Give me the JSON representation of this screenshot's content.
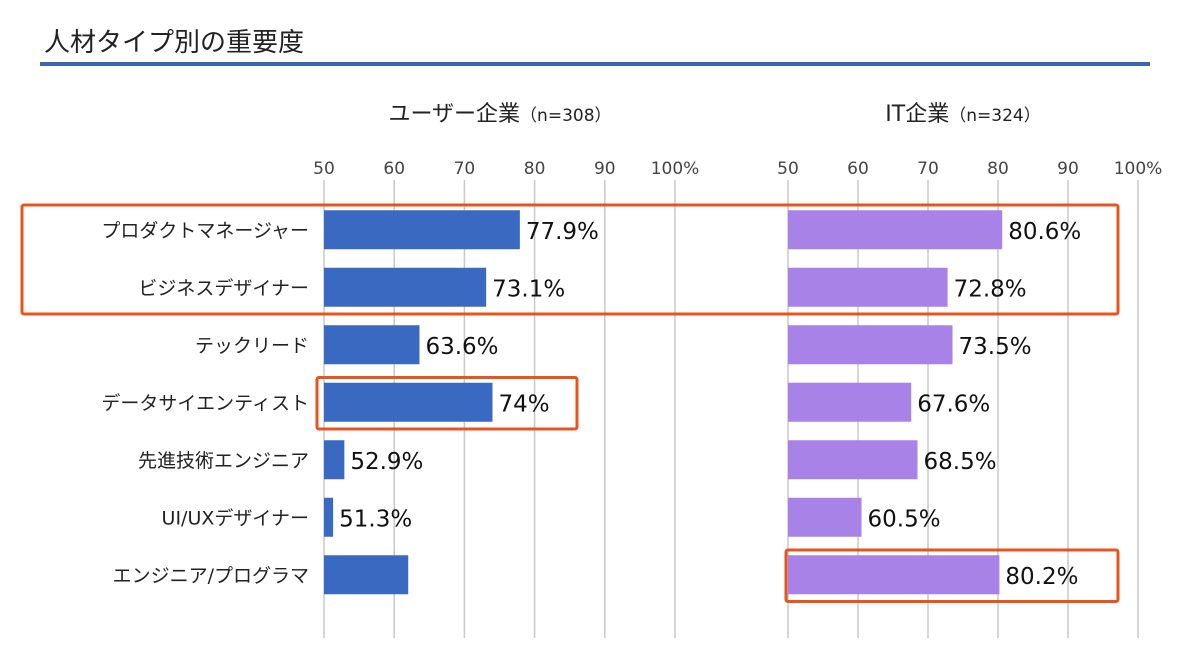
{
  "page_title": "人材タイプ別の重要度",
  "colors": {
    "title_rule": "#3b64b8",
    "left_bar": "#3a69c2",
    "right_bar": "#a982e8",
    "grid": "#c8c8c8",
    "highlight_box": "#e8541d"
  },
  "chart_data": [
    {
      "type": "bar",
      "orientation": "horizontal",
      "title": "ユーザー企業",
      "subtitle": "（n=308）",
      "xlim": [
        50,
        100
      ],
      "ticks": [
        "50",
        "60",
        "70",
        "80",
        "90",
        "100%"
      ],
      "tick_values": [
        50,
        60,
        70,
        80,
        90,
        100
      ],
      "grid": true,
      "categories": [
        "プロダクトマネージャー",
        "ビジネスデザイナー",
        "テックリード",
        "データサイエンティスト",
        "先進技術エンジニア",
        "UI/UXデザイナー",
        "エンジニア/プログラマ"
      ],
      "values": [
        77.9,
        73.1,
        63.6,
        74.0,
        52.9,
        51.3,
        62.0
      ],
      "value_labels": [
        "77.9%",
        "73.1%",
        "63.6%",
        "74%",
        "52.9%",
        "51.3%",
        ""
      ],
      "bar_color": "#3a69c2"
    },
    {
      "type": "bar",
      "orientation": "horizontal",
      "title": "IT企業",
      "subtitle": "（n=324）",
      "xlim": [
        50,
        100
      ],
      "ticks": [
        "50",
        "60",
        "70",
        "80",
        "90",
        "100%"
      ],
      "tick_values": [
        50,
        60,
        70,
        80,
        90,
        100
      ],
      "grid": true,
      "categories": [
        "プロダクトマネージャー",
        "ビジネスデザイナー",
        "テックリード",
        "データサイエンティスト",
        "先進技術エンジニア",
        "UI/UXデザイナー",
        "エンジニア/プログラマ"
      ],
      "values": [
        80.6,
        72.8,
        73.5,
        67.6,
        68.5,
        60.5,
        80.2
      ],
      "value_labels": [
        "80.6%",
        "72.8%",
        "73.5%",
        "67.6%",
        "68.5%",
        "60.5%",
        "80.2%"
      ],
      "bar_color": "#a982e8"
    }
  ],
  "highlights": [
    {
      "panel": "both",
      "categories": [
        "プロダクトマネージャー",
        "ビジネスデザイナー"
      ]
    },
    {
      "panel": "ユーザー企業",
      "categories": [
        "データサイエンティスト"
      ]
    },
    {
      "panel": "IT企業",
      "categories": [
        "エンジニア/プログラマ"
      ]
    }
  ]
}
